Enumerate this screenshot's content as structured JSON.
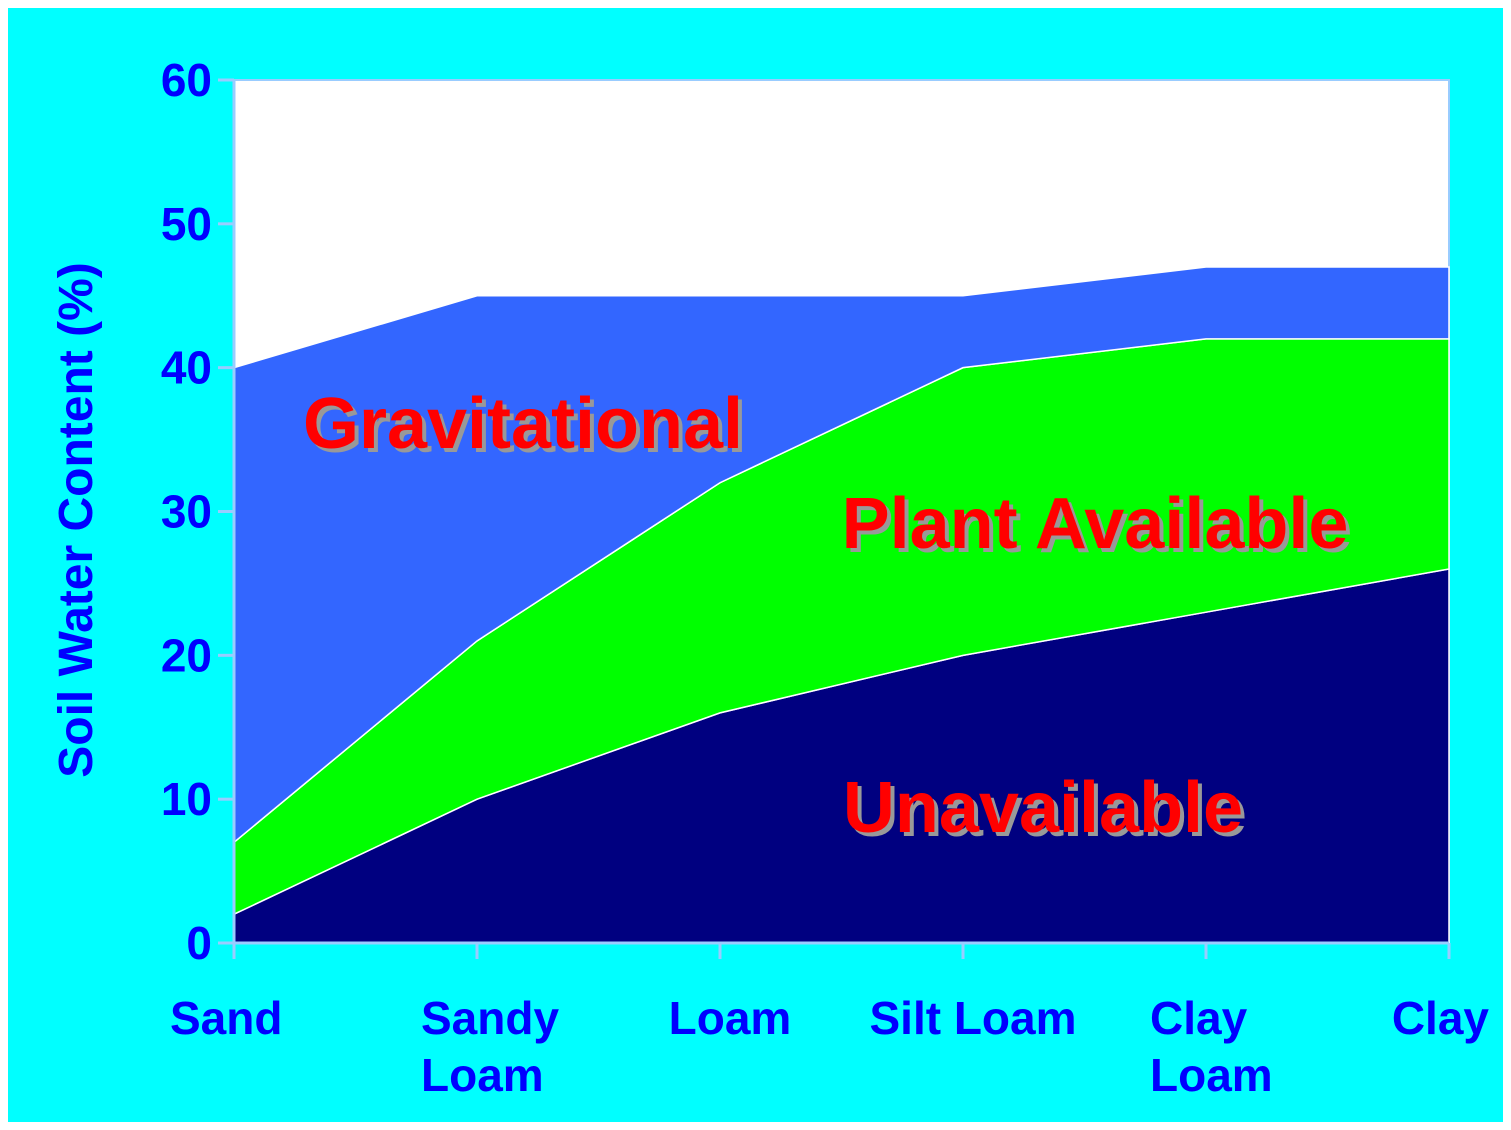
{
  "chart_data": {
    "type": "stacked_area",
    "y_label": "Soil Water Content (%)",
    "categories": [
      [
        "Sand"
      ],
      [
        "Sandy",
        "Loam"
      ],
      [
        "Loam"
      ],
      [
        "Silt Loam"
      ],
      [
        "Clay",
        "Loam"
      ],
      [
        "Clay"
      ]
    ],
    "series": [
      {
        "name": "Unavailable",
        "color": "#000080",
        "values": [
          2,
          10,
          16,
          20,
          23,
          26
        ]
      },
      {
        "name": "Plant Available",
        "color": "#00ff00",
        "values": [
          5,
          11,
          16,
          20,
          19,
          16
        ]
      },
      {
        "name": "Gravitational",
        "color": "#3366ff",
        "values": [
          33,
          24,
          13,
          5,
          5,
          5
        ]
      }
    ],
    "ylim": [
      0,
      60
    ],
    "yticks": [
      0,
      10,
      20,
      30,
      40,
      50,
      60
    ],
    "label_color": "#ff0000"
  }
}
